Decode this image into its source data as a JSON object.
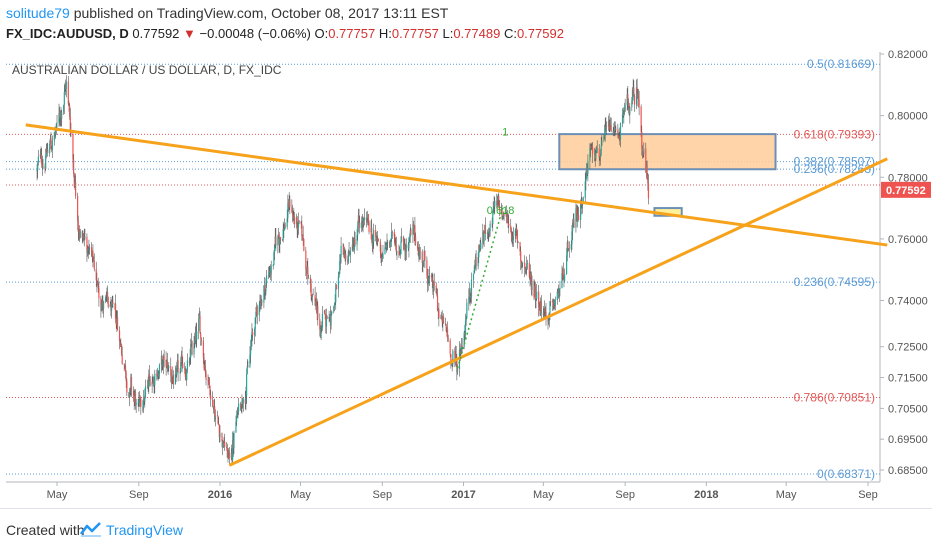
{
  "header": {
    "author": "solitude79",
    "published_text": "published on TradingView.com, October 08, 2017 13:11 EST",
    "symbol": "FX_IDC:AUDUSD, D",
    "last": "0.77592",
    "change": "−0.00048 (−0.06%)",
    "ohlc": {
      "o_label": "O:",
      "o": "0.77757",
      "h_label": "H:",
      "h": "0.77757",
      "l_label": "L:",
      "l": "0.77489",
      "c_label": "C:",
      "c": "0.77592"
    }
  },
  "chart_data": {
    "type": "candlestick",
    "title": "AUSTRALIAN DOLLAR / US DOLLAR, D, FX_IDC",
    "x_ticks": [
      "May",
      "Sep",
      "2016",
      "May",
      "Sep",
      "2017",
      "May",
      "Sep",
      "2018",
      "May",
      "Sep"
    ],
    "x_tick_dates": [
      "2015-05",
      "2015-09",
      "2016-01",
      "2016-05",
      "2016-09",
      "2017-01",
      "2017-05",
      "2017-09",
      "2018-01",
      "2018-05",
      "2018-09"
    ],
    "y_ticks": [
      "0.82000",
      "0.80000",
      "0.78000",
      "0.76000",
      "0.74000",
      "0.72500",
      "0.71500",
      "0.70500",
      "0.69500",
      "0.68500"
    ],
    "y_tick_values": [
      0.82,
      0.8,
      0.78,
      0.76,
      0.74,
      0.725,
      0.715,
      0.705,
      0.695,
      0.685
    ],
    "last_price_label": "0.77592",
    "last_price": 0.77592,
    "approx_closes": [
      [
        "2015-04-01",
        0.782
      ],
      [
        "2015-05-01",
        0.795
      ],
      [
        "2015-05-15",
        0.812
      ],
      [
        "2015-06-01",
        0.77
      ],
      [
        "2015-07-01",
        0.745
      ],
      [
        "2015-08-01",
        0.728
      ],
      [
        "2015-09-01",
        0.702
      ],
      [
        "2015-10-01",
        0.72
      ],
      [
        "2015-11-01",
        0.712
      ],
      [
        "2015-12-01",
        0.728
      ],
      [
        "2016-01-15",
        0.688
      ],
      [
        "2016-02-01",
        0.708
      ],
      [
        "2016-03-01",
        0.74
      ],
      [
        "2016-04-15",
        0.772
      ],
      [
        "2016-05-01",
        0.76
      ],
      [
        "2016-06-01",
        0.728
      ],
      [
        "2016-07-01",
        0.748
      ],
      [
        "2016-08-01",
        0.763
      ],
      [
        "2016-09-01",
        0.755
      ],
      [
        "2016-10-01",
        0.762
      ],
      [
        "2016-11-01",
        0.755
      ],
      [
        "2016-12-01",
        0.73
      ],
      [
        "2016-12-23",
        0.718
      ],
      [
        "2017-01-15",
        0.752
      ],
      [
        "2017-02-15",
        0.769
      ],
      [
        "2017-03-15",
        0.763
      ],
      [
        "2017-04-01",
        0.752
      ],
      [
        "2017-05-01",
        0.74
      ],
      [
        "2017-05-15",
        0.735
      ],
      [
        "2017-06-15",
        0.758
      ],
      [
        "2017-07-15",
        0.795
      ],
      [
        "2017-08-01",
        0.79
      ],
      [
        "2017-08-20",
        0.793
      ],
      [
        "2017-09-20",
        0.806
      ],
      [
        "2017-10-06",
        0.776
      ]
    ],
    "trendlines": [
      {
        "name": "descending",
        "points": [
          [
            "2015-03-15",
            0.797
          ],
          [
            "2018-09-30",
            0.758
          ]
        ]
      },
      {
        "name": "ascending",
        "points": [
          [
            "2016-01-15",
            0.6865
          ],
          [
            "2018-09-30",
            0.786
          ]
        ]
      }
    ],
    "fib_levels": [
      {
        "label": "0.5(0.81669)",
        "ratio": 0.5,
        "value": 0.81669,
        "color": "#5b9bd5"
      },
      {
        "label": "0.618(0.79393)",
        "ratio": 0.618,
        "value": 0.79393,
        "color": "#e05a5a"
      },
      {
        "label": "0.382(0.78507)",
        "ratio": 0.382,
        "value": 0.78507,
        "color": "#5b9bd5"
      },
      {
        "label": "0.236(0.78263)",
        "ratio": 0.236,
        "value": 0.78263,
        "color": "#5b9bd5"
      },
      {
        "label": "0.236(0.74595)",
        "ratio": 0.236,
        "value": 0.74595,
        "color": "#5b9bd5"
      },
      {
        "label": "0.786(0.70851)",
        "ratio": 0.786,
        "value": 0.70851,
        "color": "#e05a5a"
      },
      {
        "label": "0(0.68371)",
        "ratio": 0,
        "value": 0.68371,
        "color": "#5b9bd5"
      }
    ],
    "extra_level": {
      "value": 0.7775,
      "color": "#e05a5a"
    },
    "fib_annotations": [
      {
        "label": "1",
        "date": "2017-02-28",
        "value": 0.7935
      },
      {
        "label": "0.618",
        "date": "2017-02-05",
        "value": 0.768
      }
    ],
    "boxes": [
      {
        "name": "resistance-zone",
        "date_from": "2017-05-25",
        "date_to": "2018-04-15",
        "y_from": 0.7826,
        "y_to": 0.794,
        "fill": "#ffcc99"
      },
      {
        "name": "target-zone",
        "date_from": "2017-10-15",
        "date_to": "2017-11-25",
        "y_from": 0.7675,
        "y_to": 0.77,
        "fill": "#ffee88"
      }
    ],
    "dotted_projection": {
      "points": [
        [
          "2016-12-23",
          0.718
        ],
        [
          "2017-03-01",
          0.77
        ]
      ],
      "color": "#33aa33"
    },
    "grid": false,
    "legend": "none"
  },
  "footer": {
    "created_with": "Created with",
    "brand": "TradingView"
  }
}
